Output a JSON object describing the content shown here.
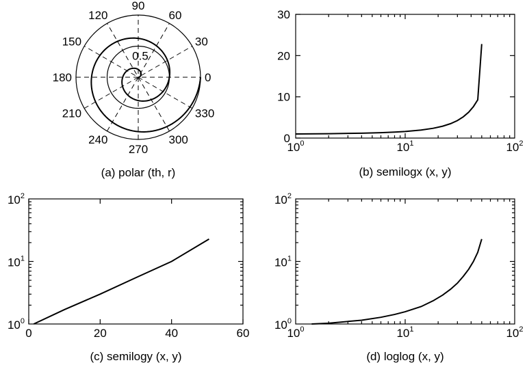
{
  "chart_data": [
    {
      "panel": "a",
      "type": "line",
      "projection": "polar",
      "caption": "(a) polar (th, r)",
      "angle_labels": [
        "0",
        "30",
        "60",
        "90",
        "120",
        "150",
        "180",
        "210",
        "240",
        "270",
        "300",
        "330"
      ],
      "radius_labels": [
        "0.5"
      ],
      "rlim": [
        0,
        1
      ],
      "grid": true,
      "series": [
        {
          "theta_deg": [
            0,
            30,
            60,
            90,
            120,
            150,
            180,
            210,
            240,
            270,
            300,
            330,
            360,
            390,
            420,
            450,
            480,
            510,
            540,
            570,
            600,
            630,
            660,
            690,
            720
          ],
          "r": [
            0,
            0.04,
            0.08,
            0.13,
            0.17,
            0.21,
            0.25,
            0.29,
            0.33,
            0.38,
            0.42,
            0.46,
            0.5,
            0.54,
            0.58,
            0.63,
            0.67,
            0.71,
            0.75,
            0.79,
            0.83,
            0.88,
            0.92,
            0.96,
            1.0
          ]
        }
      ]
    },
    {
      "panel": "b",
      "type": "line",
      "caption": "(b) semilogx (x, y)",
      "xscale": "log",
      "yscale": "linear",
      "xlim": [
        1,
        100
      ],
      "ylim": [
        0,
        30
      ],
      "xticks": [
        {
          "base": "10",
          "exp": "0"
        },
        {
          "base": "10",
          "exp": "1"
        },
        {
          "base": "10",
          "exp": "2"
        }
      ],
      "yticks": [
        "0",
        "10",
        "20",
        "30"
      ],
      "series": [
        {
          "x": [
            1,
            2,
            4,
            6,
            8,
            10,
            14,
            18,
            22,
            26,
            30,
            34,
            38,
            42,
            46,
            50
          ],
          "y": [
            1.0,
            1.06,
            1.18,
            1.31,
            1.45,
            1.6,
            1.94,
            2.37,
            2.88,
            3.5,
            4.25,
            5.17,
            6.28,
            7.63,
            9.27,
            22.8
          ]
        }
      ]
    },
    {
      "panel": "c",
      "type": "line",
      "caption": "(c) semilogy (x, y)",
      "xscale": "linear",
      "yscale": "log",
      "xlim": [
        0,
        60
      ],
      "ylim": [
        1,
        100
      ],
      "xticks": [
        "0",
        "20",
        "40",
        "60"
      ],
      "yticks": [
        {
          "base": "10",
          "exp": "0"
        },
        {
          "base": "10",
          "exp": "1"
        },
        {
          "base": "10",
          "exp": "2"
        }
      ],
      "series": [
        {
          "x": [
            1.4,
            10,
            20,
            30,
            40,
            50.5
          ],
          "y": [
            1.0,
            1.7,
            3.0,
            5.5,
            10.0,
            22.8
          ]
        }
      ]
    },
    {
      "panel": "d",
      "type": "line",
      "caption": "(d) loglog (x, y)",
      "xscale": "log",
      "yscale": "log",
      "xlim": [
        1,
        100
      ],
      "ylim": [
        1,
        100
      ],
      "xticks": [
        {
          "base": "10",
          "exp": "0"
        },
        {
          "base": "10",
          "exp": "1"
        },
        {
          "base": "10",
          "exp": "2"
        }
      ],
      "yticks": [
        {
          "base": "10",
          "exp": "0"
        },
        {
          "base": "10",
          "exp": "1"
        },
        {
          "base": "10",
          "exp": "2"
        }
      ],
      "series": [
        {
          "x": [
            1.4,
            2,
            4,
            6,
            8,
            10,
            14,
            18,
            22,
            26,
            30,
            34,
            38,
            42,
            46,
            50
          ],
          "y": [
            1.0,
            1.03,
            1.15,
            1.28,
            1.42,
            1.57,
            1.9,
            2.35,
            2.9,
            3.6,
            4.5,
            5.8,
            7.5,
            10.0,
            14.0,
            22.8
          ]
        }
      ]
    }
  ]
}
